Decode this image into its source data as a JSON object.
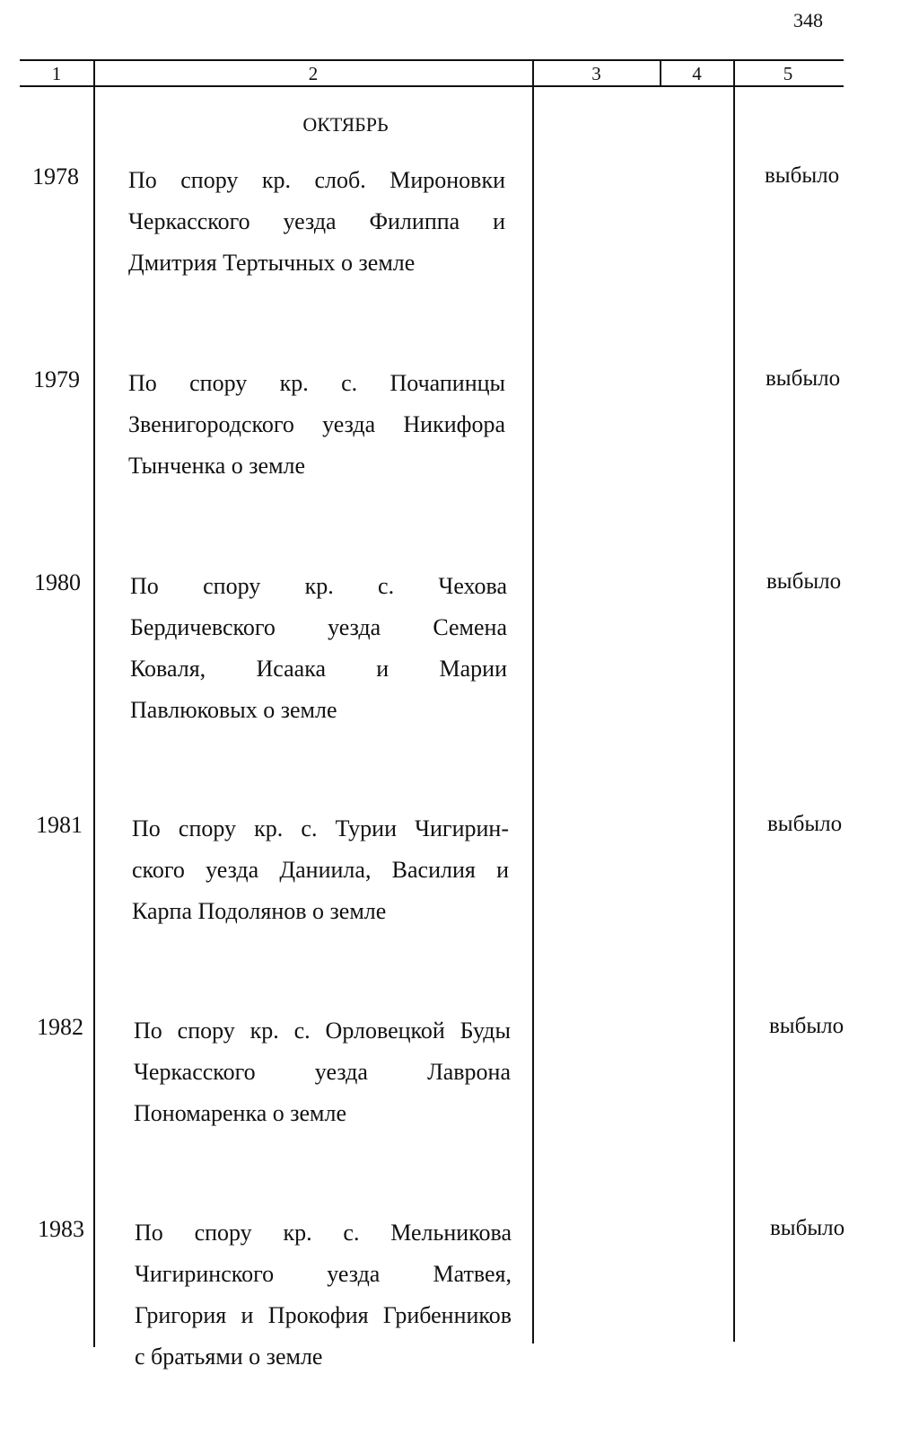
{
  "page_number": "348",
  "column_headers": [
    "1",
    "2",
    "3",
    "4",
    "5"
  ],
  "month": "ОКТЯБРЬ",
  "entries": [
    {
      "number": "1978",
      "lines": [
        "По спору кр. слоб. Мироновки",
        "Черкасского уезда Филиппа и",
        "Дмитрия Тертычных о земле"
      ],
      "status": "выбыло"
    },
    {
      "number": "1979",
      "lines": [
        "По спору кр. с. Почапинцы",
        "Звенигородского уезда Никифора",
        "Тынченка о земле"
      ],
      "status": "выбыло"
    },
    {
      "number": "1980",
      "lines": [
        "По спору кр. с. Чехова",
        "Бердичевского уезда Семена",
        "Коваля, Исаака и Марии",
        "Павлюковых о земле"
      ],
      "status": "выбыло"
    },
    {
      "number": "1981",
      "lines": [
        "По спору кр. с. Турии Чигирин-",
        "ского уезда Даниила, Василия и",
        "Карпа Подолянов о земле"
      ],
      "status": "выбыло"
    },
    {
      "number": "1982",
      "lines": [
        "По спору кр. с. Орловецкой Буды",
        "Черкасского уезда Лаврона",
        "Пономаренка о земле"
      ],
      "status": "выбыло"
    },
    {
      "number": "1983",
      "lines": [
        "По спору кр. с. Мельникова",
        "Чигиринского уезда Матвея,",
        "Григория и Прокофия Грибенников",
        "с братьями о земле"
      ],
      "status": "выбыло"
    }
  ]
}
